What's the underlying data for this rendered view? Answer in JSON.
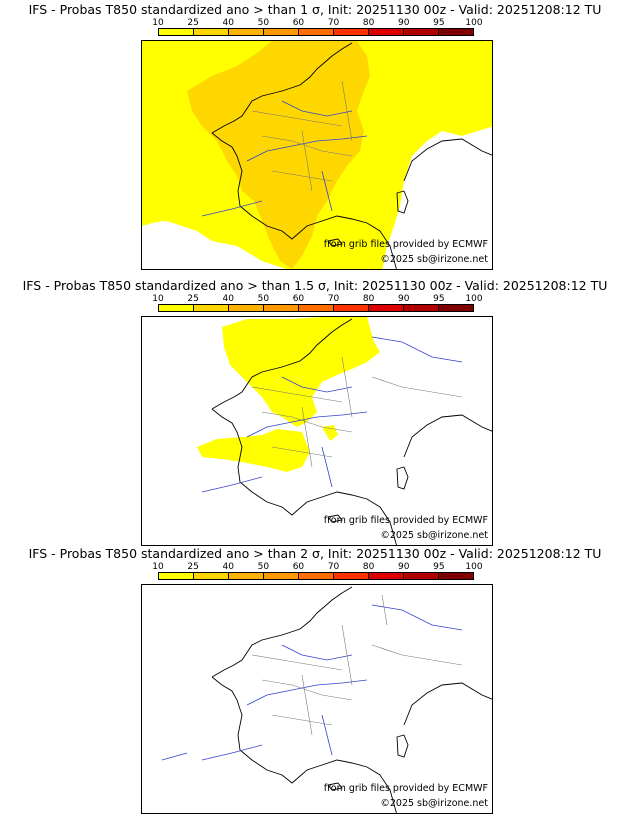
{
  "colorbar": {
    "ticks": [
      "10",
      "25",
      "40",
      "50",
      "60",
      "70",
      "80",
      "90",
      "95",
      "100"
    ],
    "colors": [
      "#ffff00",
      "#ffd700",
      "#ffb300",
      "#ff9800",
      "#ff6d00",
      "#ff3300",
      "#dd0000",
      "#b00000",
      "#800000"
    ]
  },
  "panels": [
    {
      "title": "IFS - Probas T850  standardized ano > than 1 σ, Init: 20251130 00z - Valid: 20251208:12 TU",
      "credit_source": "from grib files provided by ECMWF",
      "credit_copyright": "©2025 sb@irizone.net"
    },
    {
      "title": "IFS - Probas T850  standardized ano > than 1.5 σ, Init: 20251130 00z - Valid: 20251208:12 TU",
      "credit_source": "from grib files provided by ECMWF",
      "credit_copyright": "©2025 sb@irizone.net"
    },
    {
      "title": "IFS - Probas T850  standardized ano > than 2 σ, Init: 20251130 00z - Valid: 20251208:12 TU",
      "credit_source": "from grib files provided by ECMWF",
      "credit_copyright": "©2025 sb@irizone.net"
    }
  ]
}
